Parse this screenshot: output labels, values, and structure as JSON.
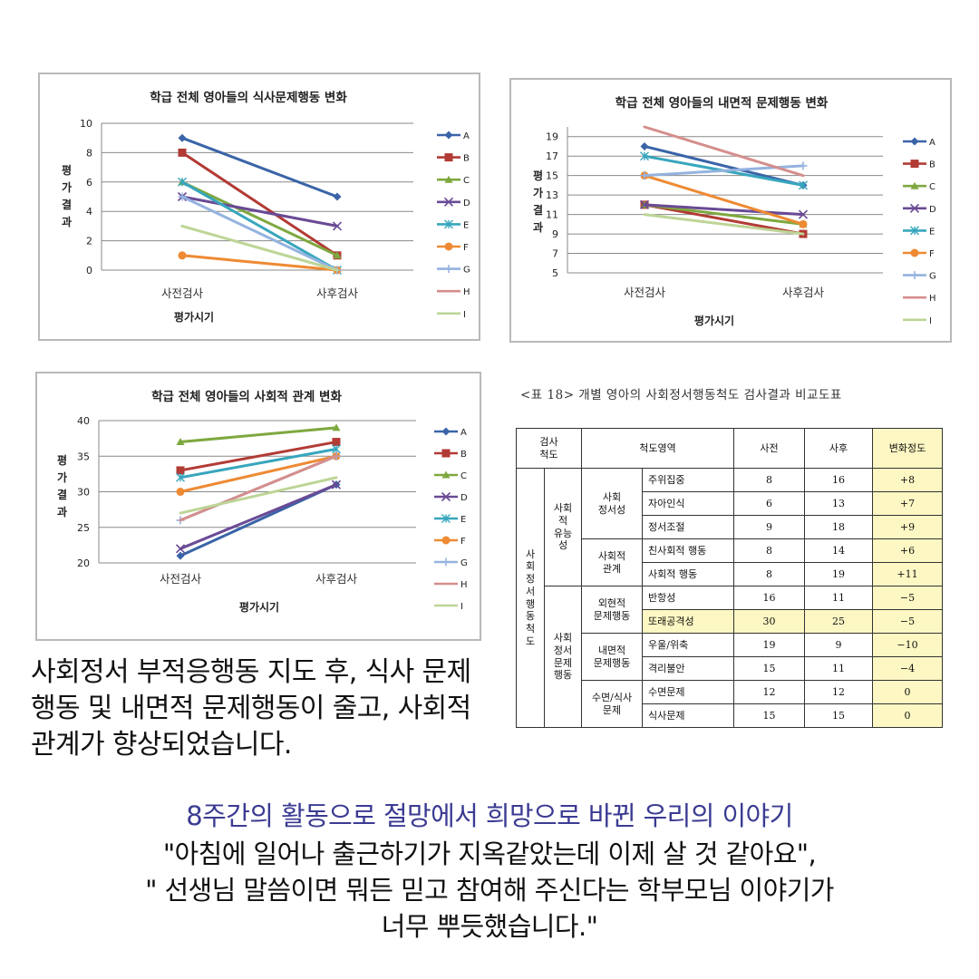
{
  "chart_data": [
    {
      "type": "line",
      "title": "학급 전체 영아들의 식사문제행동 변화",
      "xlabel": "평가시기",
      "ylabel": "평가결과",
      "categories": [
        "사전검사",
        "사후검사"
      ],
      "ylim": [
        0,
        10
      ],
      "yticks": [
        0,
        2,
        4,
        6,
        8,
        10
      ],
      "legend": "right",
      "grid": true,
      "series": [
        {
          "name": "A",
          "values": [
            9,
            5
          ]
        },
        {
          "name": "B",
          "values": [
            8,
            1
          ]
        },
        {
          "name": "C",
          "values": [
            6,
            1
          ]
        },
        {
          "name": "D",
          "values": [
            5,
            3
          ]
        },
        {
          "name": "E",
          "values": [
            6,
            0
          ]
        },
        {
          "name": "F",
          "values": [
            1,
            0
          ]
        },
        {
          "name": "G",
          "values": [
            5,
            0
          ]
        },
        {
          "name": "H",
          "values": [
            null,
            null
          ]
        },
        {
          "name": "I",
          "values": [
            3,
            0
          ]
        }
      ]
    },
    {
      "type": "line",
      "title": "학급 전체 영아들의 내면적 문제행동 변화",
      "xlabel": "평가시기",
      "ylabel": "평가결과",
      "categories": [
        "사전검사",
        "사후검사"
      ],
      "ylim": [
        5,
        20
      ],
      "yticks": [
        5,
        7,
        9,
        11,
        13,
        15,
        17,
        19
      ],
      "legend": "right",
      "grid": true,
      "series": [
        {
          "name": "A",
          "values": [
            18,
            14
          ]
        },
        {
          "name": "B",
          "values": [
            12,
            9
          ]
        },
        {
          "name": "C",
          "values": [
            12,
            10
          ]
        },
        {
          "name": "D",
          "values": [
            12,
            11
          ]
        },
        {
          "name": "E",
          "values": [
            17,
            14
          ]
        },
        {
          "name": "F",
          "values": [
            15,
            10
          ]
        },
        {
          "name": "G",
          "values": [
            15,
            16
          ]
        },
        {
          "name": "H",
          "values": [
            20,
            15
          ]
        },
        {
          "name": "I",
          "values": [
            11,
            9
          ]
        }
      ]
    },
    {
      "type": "line",
      "title": "학급 전체 영아들의 사회적 관계 변화",
      "xlabel": "평가시기",
      "ylabel": "평가결과",
      "categories": [
        "사전검사",
        "사후검사"
      ],
      "ylim": [
        20,
        40
      ],
      "yticks": [
        20,
        25,
        30,
        35,
        40
      ],
      "legend": "right",
      "grid": true,
      "series": [
        {
          "name": "A",
          "values": [
            21,
            31
          ]
        },
        {
          "name": "B",
          "values": [
            33,
            37
          ]
        },
        {
          "name": "C",
          "values": [
            37,
            39
          ]
        },
        {
          "name": "D",
          "values": [
            22,
            31
          ]
        },
        {
          "name": "E",
          "values": [
            32,
            36
          ]
        },
        {
          "name": "F",
          "values": [
            30,
            35
          ]
        },
        {
          "name": "G",
          "values": [
            26,
            35
          ]
        },
        {
          "name": "H",
          "values": [
            26,
            35
          ]
        },
        {
          "name": "I",
          "values": [
            27,
            32
          ]
        }
      ]
    }
  ],
  "colors": {
    "A": "#3a64a8",
    "B": "#b23b35",
    "C": "#7ea83f",
    "D": "#6a4a95",
    "E": "#37a6bd",
    "F": "#ee8a33",
    "G": "#94b3df",
    "H": "#d58e8c",
    "I": "#bdd596"
  },
  "markers": {
    "A": "diamond",
    "B": "square",
    "C": "triangle",
    "D": "x",
    "E": "asterisk",
    "F": "circle",
    "G": "plus",
    "H": "none",
    "I": "none"
  },
  "table": {
    "caption": "<표 18> 개별 영아의 사회정서행동척도 검사결과 비교도표",
    "header": {
      "scale": "검사\n척도",
      "area": "척도영역",
      "pre": "사전",
      "post": "사후",
      "change": "변화정도"
    },
    "scale_name": "사\n회\n정\n서\n행\n동\n척\n도",
    "group1": "사회\n적\n유능\n성",
    "group2": "사회\n정서\n문제\n행동",
    "sub": {
      "social_emotion": "사회\n정서성",
      "social_relation": "사회적\n관계",
      "external": "외현적\n문제행동",
      "internal": "내면적\n문제행동",
      "sleep_eat": "수면/식사\n문제"
    },
    "rows": [
      {
        "item": "주위집중",
        "pre": "8",
        "post": "16",
        "change": "+8"
      },
      {
        "item": "자아인식",
        "pre": "6",
        "post": "13",
        "change": "+7"
      },
      {
        "item": "정서조절",
        "pre": "9",
        "post": "18",
        "change": "+9"
      },
      {
        "item": "친사회적 행동",
        "pre": "8",
        "post": "14",
        "change": "+6"
      },
      {
        "item": "사회적 행동",
        "pre": "8",
        "post": "19",
        "change": "+11"
      },
      {
        "item": "반항성",
        "pre": "16",
        "post": "11",
        "change": "−5"
      },
      {
        "item": "또래공격성",
        "pre": "30",
        "post": "25",
        "change": "−5"
      },
      {
        "item": "우울/위축",
        "pre": "19",
        "post": "9",
        "change": "−10"
      },
      {
        "item": "격리불안",
        "pre": "15",
        "post": "11",
        "change": "−4"
      },
      {
        "item": "수면문제",
        "pre": "12",
        "post": "12",
        "change": "0"
      },
      {
        "item": "식사문제",
        "pre": "15",
        "post": "15",
        "change": "0"
      }
    ]
  },
  "summary": "사회정서 부적응행동 지도 후, 식사 문제행동 및 내면적 문제행동이 줄고, 사회적 관계가 향상되었습니다.",
  "story_title": "8주간의 활동으로 절망에서 희망으로 바뀐 우리의 이야기",
  "quote": {
    "line1": "\"아침에 일어나 출근하기가 지옥같았는데 이제 살 것 같아요\",",
    "line2": "\" 선생님 말씀이면 뭐든 믿고 참여해 주신다는 학부모님 이야기가",
    "line3": "너무 뿌듯했습니다.\""
  }
}
